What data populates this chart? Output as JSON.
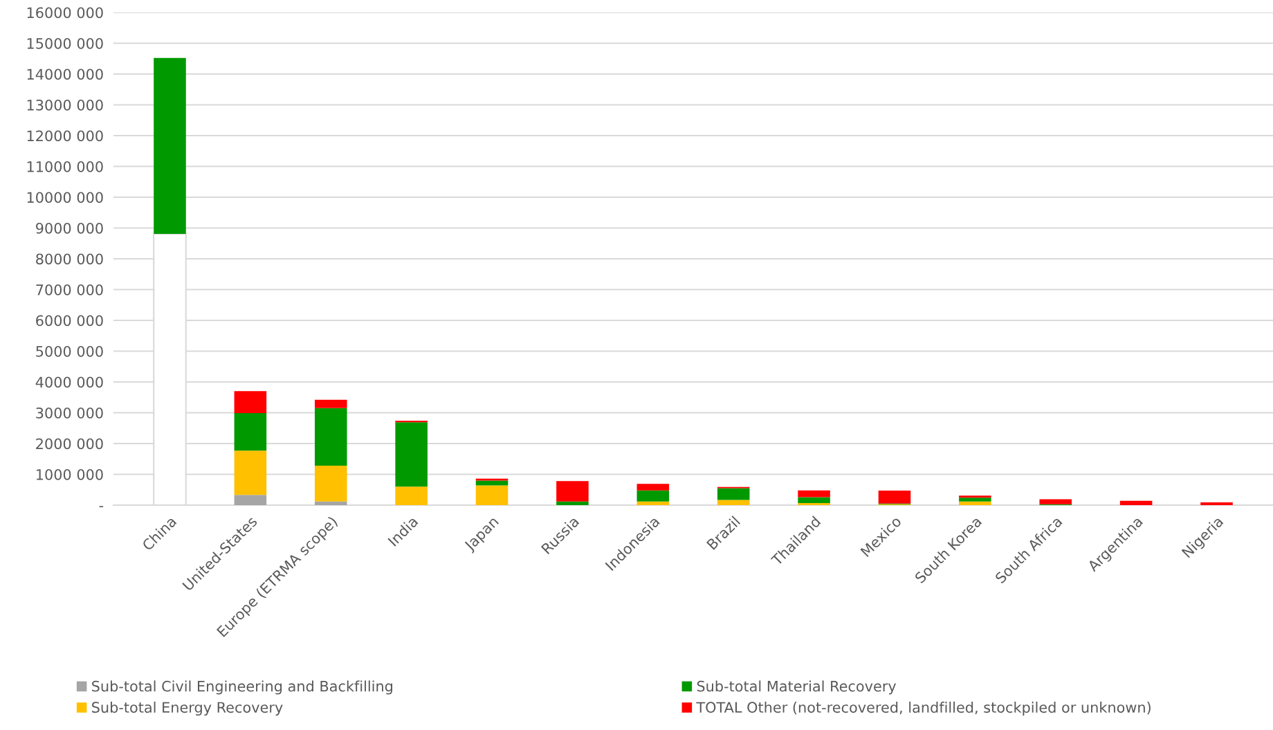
{
  "chart_data": {
    "type": "bar",
    "stacked": true,
    "categories": [
      "China",
      "United-States",
      "Europe (ETRMA scope)",
      "India",
      "Japan",
      "Russia",
      "Indonesia",
      "Brazil",
      "Thailand",
      "Mexico",
      "South Korea",
      "South Africa",
      "Argentina",
      "Nigeria"
    ],
    "series": [
      {
        "color": "#ffffff",
        "values": [
          8810000,
          0,
          0,
          0,
          0,
          0,
          0,
          0,
          0,
          0,
          0,
          0,
          0,
          0
        ]
      },
      {
        "name": "Sub-total Civil Engineering and Backfilling",
        "color": "#a5a5a5",
        "values": [
          0,
          330000,
          120000,
          0,
          0,
          0,
          0,
          0,
          0,
          0,
          0,
          0,
          0,
          0
        ]
      },
      {
        "name": "Sub-total Energy Recovery",
        "color": "#ffc000",
        "values": [
          0,
          1440000,
          1160000,
          600000,
          640000,
          0,
          120000,
          170000,
          70000,
          30000,
          120000,
          0,
          0,
          0
        ]
      },
      {
        "name": "Sub-total Material Recovery",
        "color": "#009900",
        "values": [
          5710000,
          1220000,
          1870000,
          2090000,
          160000,
          120000,
          360000,
          380000,
          190000,
          20000,
          120000,
          30000,
          0,
          0
        ]
      },
      {
        "name": "TOTAL Other (not-recovered, landfilled, stockpiled or unknown)",
        "color": "#ff0000",
        "values": [
          0,
          710000,
          270000,
          50000,
          60000,
          660000,
          210000,
          40000,
          220000,
          420000,
          70000,
          160000,
          140000,
          90000
        ]
      }
    ],
    "ylim": [
      0,
      16000000
    ],
    "yticks": [
      {
        "value": 0,
        "label": "-"
      },
      {
        "value": 1000000,
        "label": "1000 000"
      },
      {
        "value": 2000000,
        "label": "2000 000"
      },
      {
        "value": 3000000,
        "label": "3000 000"
      },
      {
        "value": 4000000,
        "label": "4000 000"
      },
      {
        "value": 5000000,
        "label": "5000 000"
      },
      {
        "value": 6000000,
        "label": "6000 000"
      },
      {
        "value": 7000000,
        "label": "7000 000"
      },
      {
        "value": 8000000,
        "label": "8000 000"
      },
      {
        "value": 9000000,
        "label": "9000 000"
      },
      {
        "value": 10000000,
        "label": "10000 000"
      },
      {
        "value": 11000000,
        "label": "11000 000"
      },
      {
        "value": 12000000,
        "label": "12000 000"
      },
      {
        "value": 13000000,
        "label": "13000 000"
      },
      {
        "value": 14000000,
        "label": "14000 000"
      },
      {
        "value": 15000000,
        "label": "15000 000"
      },
      {
        "value": 16000000,
        "label": "16000 000"
      }
    ],
    "grid": "y",
    "legend": "bottom"
  }
}
